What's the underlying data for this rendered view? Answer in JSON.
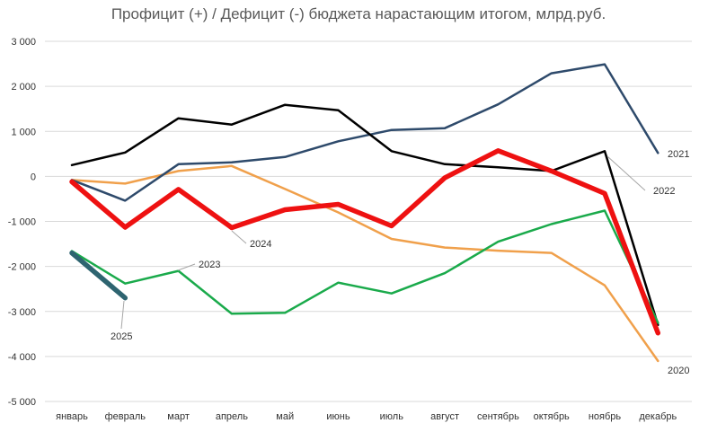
{
  "chart_data": {
    "type": "line",
    "title": "Профицит (+) / Дефицит (-) бюджета нарастающим итогом, млрд.руб.",
    "categories": [
      "январь",
      "февраль",
      "март",
      "апрель",
      "май",
      "июнь",
      "июль",
      "август",
      "сентябрь",
      "октябрь",
      "ноябрь",
      "декабрь"
    ],
    "ylim": [
      -5000,
      3000
    ],
    "yticks": [
      {
        "value": 3000,
        "label": "3 000"
      },
      {
        "value": 2000,
        "label": "2 000"
      },
      {
        "value": 1000,
        "label": "1 000"
      },
      {
        "value": 0,
        "label": "0"
      },
      {
        "value": -1000,
        "label": "-1 000"
      },
      {
        "value": -2000,
        "label": "-2 000"
      },
      {
        "value": -3000,
        "label": "-3 000"
      },
      {
        "value": -4000,
        "label": "-4 000"
      },
      {
        "value": -5000,
        "label": "-5 000"
      }
    ],
    "grid": true,
    "legend": "none",
    "series": [
      {
        "name": "2020",
        "color": "#f0a04b",
        "values": [
          -80,
          -160,
          120,
          230,
          -280,
          -800,
          -1390,
          -1580,
          -1650,
          -1700,
          -2420,
          -4100
        ]
      },
      {
        "name": "2021",
        "color": "#2e4a6b",
        "values": [
          -80,
          -540,
          270,
          310,
          430,
          780,
          1030,
          1070,
          1600,
          2290,
          2490,
          520
        ]
      },
      {
        "name": "2022",
        "color": "#000000",
        "values": [
          250,
          530,
          1290,
          1150,
          1590,
          1470,
          560,
          270,
          200,
          120,
          560,
          -3300
        ]
      },
      {
        "name": "2023",
        "color": "#1aaa4b",
        "values": [
          -1660,
          -2380,
          -2100,
          -3050,
          -3030,
          -2360,
          -2600,
          -2150,
          -1450,
          -1060,
          -760,
          -3250
        ]
      },
      {
        "name": "2024",
        "color": "#ee1111",
        "values": [
          -120,
          -1130,
          -290,
          -1140,
          -740,
          -620,
          -1100,
          -30,
          570,
          120,
          -380,
          -3480
        ]
      },
      {
        "name": "2025",
        "color": "#2e6470",
        "values": [
          -1700,
          -2700,
          null,
          null,
          null,
          null,
          null,
          null,
          null,
          null,
          null,
          null
        ]
      }
    ],
    "series_labels": [
      "2020",
      "2021",
      "2022",
      "2023",
      "2024",
      "2025"
    ]
  }
}
